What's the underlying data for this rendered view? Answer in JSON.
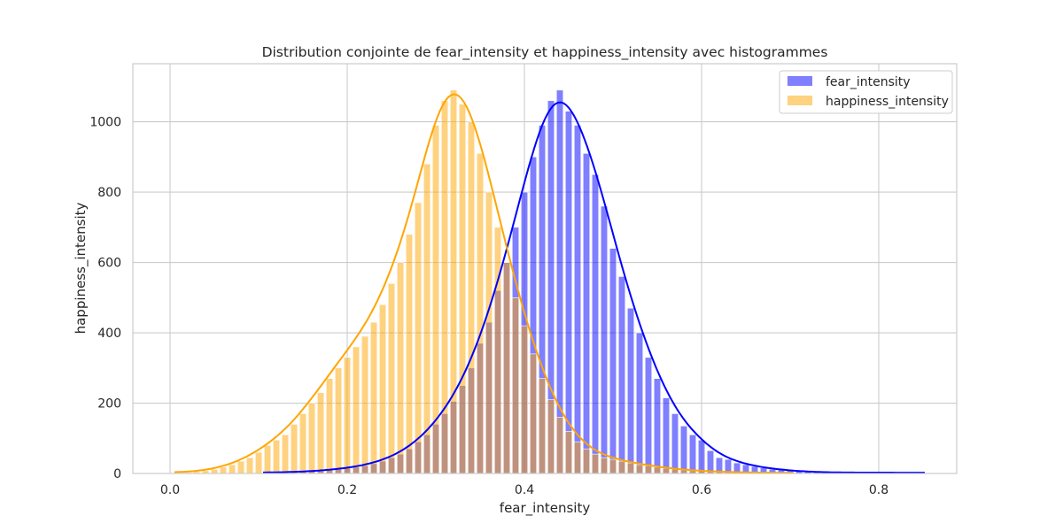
{
  "chart_data": {
    "type": "histogram",
    "title": "Distribution conjointe de fear_intensity et happiness_intensity avec histogrammes",
    "xlabel": "fear_intensity",
    "ylabel": "happiness_intensity",
    "xlim": [
      -0.042,
      0.888
    ],
    "ylim": [
      0,
      1165
    ],
    "xticks": [
      0.0,
      0.2,
      0.4,
      0.6,
      0.8
    ],
    "xtick_labels": [
      "0.0",
      "0.2",
      "0.4",
      "0.6",
      "0.8"
    ],
    "yticks": [
      0,
      200,
      400,
      600,
      800,
      1000
    ],
    "ytick_labels": [
      "0",
      "200",
      "400",
      "600",
      "800",
      "1000"
    ],
    "grid": true,
    "legend_position": "top-right",
    "bin_width": 0.0075,
    "series": [
      {
        "name": "fear_intensity",
        "color": "#0000ff",
        "bar_opacity": 0.5,
        "kde_peak": 1055,
        "hist": [
          {
            "x": 0.11,
            "y": 2
          },
          {
            "x": 0.12,
            "y": 3
          },
          {
            "x": 0.13,
            "y": 3
          },
          {
            "x": 0.14,
            "y": 4
          },
          {
            "x": 0.15,
            "y": 5
          },
          {
            "x": 0.16,
            "y": 6
          },
          {
            "x": 0.17,
            "y": 8
          },
          {
            "x": 0.18,
            "y": 10
          },
          {
            "x": 0.19,
            "y": 12
          },
          {
            "x": 0.2,
            "y": 15
          },
          {
            "x": 0.21,
            "y": 18
          },
          {
            "x": 0.22,
            "y": 22
          },
          {
            "x": 0.23,
            "y": 28
          },
          {
            "x": 0.24,
            "y": 35
          },
          {
            "x": 0.25,
            "y": 45
          },
          {
            "x": 0.26,
            "y": 55
          },
          {
            "x": 0.27,
            "y": 70
          },
          {
            "x": 0.28,
            "y": 90
          },
          {
            "x": 0.29,
            "y": 110
          },
          {
            "x": 0.3,
            "y": 140
          },
          {
            "x": 0.31,
            "y": 170
          },
          {
            "x": 0.32,
            "y": 205
          },
          {
            "x": 0.33,
            "y": 250
          },
          {
            "x": 0.34,
            "y": 300
          },
          {
            "x": 0.35,
            "y": 370
          },
          {
            "x": 0.36,
            "y": 430
          },
          {
            "x": 0.37,
            "y": 520
          },
          {
            "x": 0.38,
            "y": 600
          },
          {
            "x": 0.39,
            "y": 700
          },
          {
            "x": 0.4,
            "y": 800
          },
          {
            "x": 0.41,
            "y": 900
          },
          {
            "x": 0.42,
            "y": 990
          },
          {
            "x": 0.43,
            "y": 1060
          },
          {
            "x": 0.44,
            "y": 1090
          },
          {
            "x": 0.45,
            "y": 1030
          },
          {
            "x": 0.46,
            "y": 990
          },
          {
            "x": 0.47,
            "y": 910
          },
          {
            "x": 0.48,
            "y": 850
          },
          {
            "x": 0.49,
            "y": 760
          },
          {
            "x": 0.5,
            "y": 640
          },
          {
            "x": 0.51,
            "y": 560
          },
          {
            "x": 0.52,
            "y": 470
          },
          {
            "x": 0.53,
            "y": 400
          },
          {
            "x": 0.54,
            "y": 330
          },
          {
            "x": 0.55,
            "y": 270
          },
          {
            "x": 0.56,
            "y": 215
          },
          {
            "x": 0.57,
            "y": 170
          },
          {
            "x": 0.58,
            "y": 135
          },
          {
            "x": 0.59,
            "y": 110
          },
          {
            "x": 0.6,
            "y": 95
          },
          {
            "x": 0.61,
            "y": 65
          },
          {
            "x": 0.62,
            "y": 45
          },
          {
            "x": 0.63,
            "y": 40
          },
          {
            "x": 0.64,
            "y": 30
          },
          {
            "x": 0.65,
            "y": 25
          },
          {
            "x": 0.66,
            "y": 20
          },
          {
            "x": 0.67,
            "y": 16
          },
          {
            "x": 0.68,
            "y": 12
          },
          {
            "x": 0.69,
            "y": 10
          },
          {
            "x": 0.7,
            "y": 8
          },
          {
            "x": 0.71,
            "y": 6
          },
          {
            "x": 0.72,
            "y": 5
          },
          {
            "x": 0.73,
            "y": 4
          },
          {
            "x": 0.74,
            "y": 3
          },
          {
            "x": 0.75,
            "y": 3
          },
          {
            "x": 0.76,
            "y": 2
          },
          {
            "x": 0.77,
            "y": 3
          },
          {
            "x": 0.78,
            "y": 2
          },
          {
            "x": 0.79,
            "y": 3
          },
          {
            "x": 0.8,
            "y": 2
          },
          {
            "x": 0.81,
            "y": 2
          },
          {
            "x": 0.82,
            "y": 3
          },
          {
            "x": 0.83,
            "y": 2
          },
          {
            "x": 0.84,
            "y": 2
          },
          {
            "x": 0.85,
            "y": 2
          }
        ]
      },
      {
        "name": "happiness_intensity",
        "color": "#ffa500",
        "bar_opacity": 0.5,
        "kde_peak": 1078,
        "hist": [
          {
            "x": 0.01,
            "y": 2
          },
          {
            "x": 0.02,
            "y": 3
          },
          {
            "x": 0.03,
            "y": 5
          },
          {
            "x": 0.04,
            "y": 8
          },
          {
            "x": 0.05,
            "y": 12
          },
          {
            "x": 0.06,
            "y": 18
          },
          {
            "x": 0.07,
            "y": 25
          },
          {
            "x": 0.08,
            "y": 35
          },
          {
            "x": 0.09,
            "y": 45
          },
          {
            "x": 0.1,
            "y": 60
          },
          {
            "x": 0.11,
            "y": 80
          },
          {
            "x": 0.12,
            "y": 95
          },
          {
            "x": 0.13,
            "y": 110
          },
          {
            "x": 0.14,
            "y": 140
          },
          {
            "x": 0.15,
            "y": 170
          },
          {
            "x": 0.16,
            "y": 200
          },
          {
            "x": 0.17,
            "y": 230
          },
          {
            "x": 0.18,
            "y": 270
          },
          {
            "x": 0.19,
            "y": 300
          },
          {
            "x": 0.2,
            "y": 330
          },
          {
            "x": 0.21,
            "y": 360
          },
          {
            "x": 0.22,
            "y": 390
          },
          {
            "x": 0.23,
            "y": 430
          },
          {
            "x": 0.24,
            "y": 480
          },
          {
            "x": 0.25,
            "y": 540
          },
          {
            "x": 0.26,
            "y": 600
          },
          {
            "x": 0.27,
            "y": 680
          },
          {
            "x": 0.28,
            "y": 770
          },
          {
            "x": 0.29,
            "y": 880
          },
          {
            "x": 0.3,
            "y": 990
          },
          {
            "x": 0.31,
            "y": 1060
          },
          {
            "x": 0.32,
            "y": 1090
          },
          {
            "x": 0.33,
            "y": 1050
          },
          {
            "x": 0.34,
            "y": 1000
          },
          {
            "x": 0.35,
            "y": 910
          },
          {
            "x": 0.36,
            "y": 800
          },
          {
            "x": 0.37,
            "y": 700
          },
          {
            "x": 0.38,
            "y": 600
          },
          {
            "x": 0.39,
            "y": 500
          },
          {
            "x": 0.4,
            "y": 420
          },
          {
            "x": 0.41,
            "y": 340
          },
          {
            "x": 0.42,
            "y": 270
          },
          {
            "x": 0.43,
            "y": 210
          },
          {
            "x": 0.44,
            "y": 160
          },
          {
            "x": 0.45,
            "y": 120
          },
          {
            "x": 0.46,
            "y": 90
          },
          {
            "x": 0.47,
            "y": 70
          },
          {
            "x": 0.48,
            "y": 55
          },
          {
            "x": 0.49,
            "y": 45
          },
          {
            "x": 0.5,
            "y": 40
          },
          {
            "x": 0.51,
            "y": 35
          },
          {
            "x": 0.52,
            "y": 30
          },
          {
            "x": 0.53,
            "y": 25
          },
          {
            "x": 0.54,
            "y": 22
          },
          {
            "x": 0.55,
            "y": 18
          },
          {
            "x": 0.56,
            "y": 15
          },
          {
            "x": 0.57,
            "y": 12
          },
          {
            "x": 0.58,
            "y": 10
          },
          {
            "x": 0.59,
            "y": 8
          },
          {
            "x": 0.6,
            "y": 7
          },
          {
            "x": 0.61,
            "y": 6
          },
          {
            "x": 0.62,
            "y": 5
          },
          {
            "x": 0.63,
            "y": 4
          },
          {
            "x": 0.64,
            "y": 3
          },
          {
            "x": 0.65,
            "y": 3
          },
          {
            "x": 0.66,
            "y": 2
          },
          {
            "x": 0.67,
            "y": 2
          },
          {
            "x": 0.68,
            "y": 2
          },
          {
            "x": 0.69,
            "y": 2
          },
          {
            "x": 0.7,
            "y": 1
          }
        ]
      }
    ]
  }
}
